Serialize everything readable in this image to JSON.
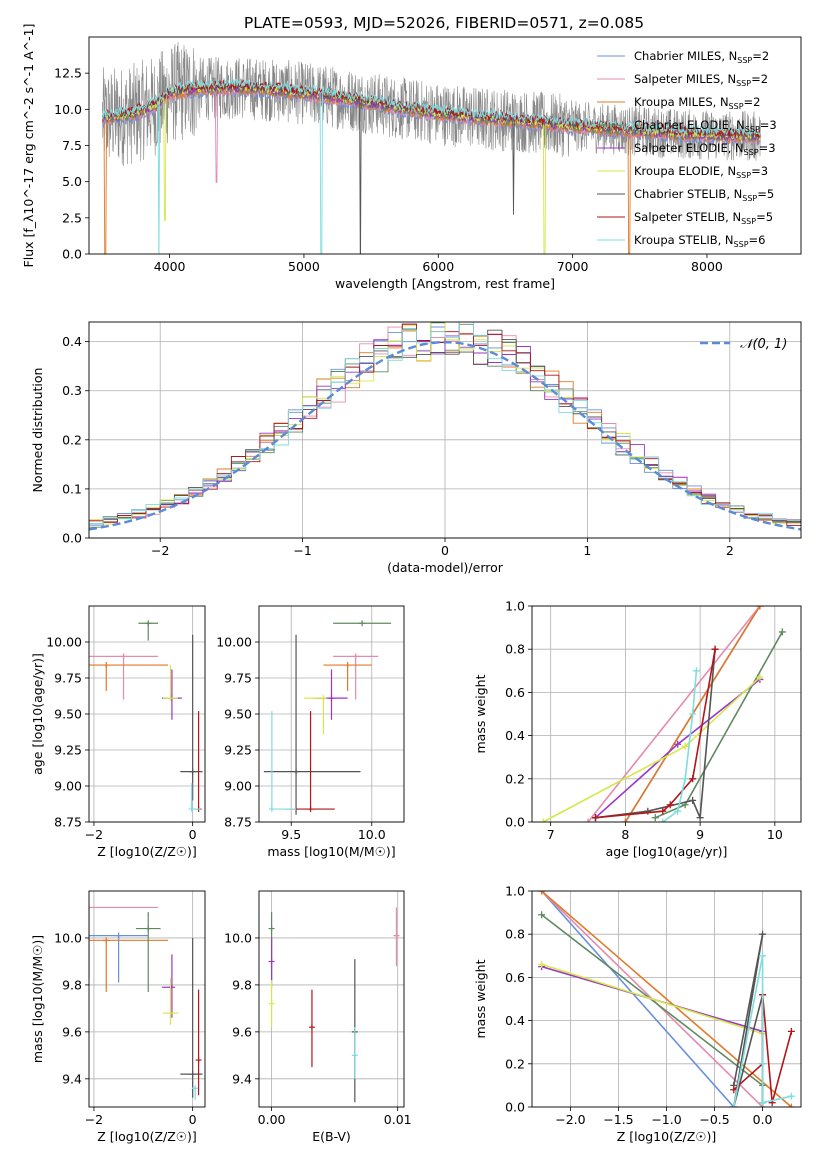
{
  "figure_title": "PLATE=0593, MJD=52026, FIBERID=0571, z=0.085",
  "colors": {
    "chabrier_miles": "#6a8fdd",
    "salpeter_miles": "#e58bb0",
    "kroupa_miles": "#e07a28",
    "chabrier_elodie": "#5f8a60",
    "salpeter_elodie": "#9a36c8",
    "kroupa_elodie": "#d4e84a",
    "chabrier_stelib": "#555555",
    "salpeter_stelib": "#b0161a",
    "kroupa_stelib": "#7fdde0",
    "gaussian": "#5b8bd6",
    "grid": "#b0b0b0"
  },
  "chart_data": [
    {
      "id": "spectrum",
      "type": "line",
      "xlabel": "wavelength [Angstrom, rest frame]",
      "ylabel": "Flux [f_λ10^-17 erg cm^-2 s^-1 A^-1]",
      "xlim": [
        3400,
        8700
      ],
      "ylim": [
        0,
        15
      ],
      "xticks": [
        4000,
        5000,
        6000,
        7000,
        8000
      ],
      "yticks": [
        0.0,
        2.5,
        5.0,
        7.5,
        10.0,
        12.5
      ],
      "legend_position": "top-right",
      "legend": [
        {
          "key": "chabrier_miles",
          "label": "Chabrier MILES, N",
          "sub": "SSP",
          "suffix": "=2"
        },
        {
          "key": "salpeter_miles",
          "label": "Salpeter MILES, N",
          "sub": "SSP",
          "suffix": "=2"
        },
        {
          "key": "kroupa_miles",
          "label": "Kroupa MILES, N",
          "sub": "SSP",
          "suffix": "=2"
        },
        {
          "key": "chabrier_elodie",
          "label": "Chabrier ELODIE, N",
          "sub": "SSP",
          "suffix": "=3"
        },
        {
          "key": "salpeter_elodie",
          "label": "Salpeter ELODIE, N",
          "sub": "SSP",
          "suffix": "=3"
        },
        {
          "key": "kroupa_elodie",
          "label": "Kroupa ELODIE, N",
          "sub": "SSP",
          "suffix": "=3"
        },
        {
          "key": "chabrier_stelib",
          "label": "Chabrier STELIB, N",
          "sub": "SSP",
          "suffix": "=5"
        },
        {
          "key": "salpeter_stelib",
          "label": "Salpeter STELIB, N",
          "sub": "SSP",
          "suffix": "=5"
        },
        {
          "key": "kroupa_stelib",
          "label": "Kroupa STELIB, N",
          "sub": "SSP",
          "suffix": "=6"
        }
      ],
      "continuum": [
        [
          3500,
          9.4
        ],
        [
          3700,
          9.6
        ],
        [
          3900,
          10.3
        ],
        [
          4000,
          11.1
        ],
        [
          4200,
          11.4
        ],
        [
          4500,
          11.5
        ],
        [
          4800,
          11.3
        ],
        [
          5100,
          11.0
        ],
        [
          5400,
          10.6
        ],
        [
          5700,
          10.1
        ],
        [
          6000,
          9.7
        ],
        [
          6300,
          9.4
        ],
        [
          6600,
          9.2
        ],
        [
          6900,
          8.9
        ],
        [
          7200,
          8.7
        ],
        [
          7500,
          8.5
        ],
        [
          7800,
          8.3
        ],
        [
          8100,
          8.2
        ],
        [
          8400,
          8.1
        ]
      ],
      "data_noise_amp": 2.2,
      "absorption_features": [
        {
          "x": 3520,
          "series": "kroupa_miles",
          "depth": 9.0
        },
        {
          "x": 3920,
          "series": "kroupa_stelib",
          "depth": 10.0
        },
        {
          "x": 3965,
          "series": "kroupa_elodie",
          "depth": 6.5
        },
        {
          "x": 4350,
          "series": "salpeter_miles",
          "depth": 4.5
        },
        {
          "x": 5130,
          "series": "kroupa_stelib",
          "depth": 11.0
        },
        {
          "x": 5420,
          "series": "chabrier_stelib",
          "depth": 11.0
        },
        {
          "x": 6560,
          "series": "chabrier_stelib",
          "depth": 4.5
        },
        {
          "x": 6790,
          "series": "kroupa_elodie",
          "depth": 9.0
        },
        {
          "x": 7420,
          "series": "kroupa_miles",
          "depth": 9.0
        }
      ]
    },
    {
      "id": "residuals",
      "type": "bar",
      "xlabel": "(data-model)/error",
      "ylabel": "Normed distribution",
      "xlim": [
        -2.5,
        2.5
      ],
      "ylim": [
        0,
        0.44
      ],
      "xticks": [
        -2,
        -1,
        0,
        1,
        2
      ],
      "yticks": [
        0.0,
        0.1,
        0.2,
        0.3,
        0.4
      ],
      "bin_width": 0.1,
      "legend_position": "top-right",
      "gaussian_label": "𝒩(0, 1)",
      "gaussian": {
        "mean": 0,
        "sigma": 1
      }
    },
    {
      "id": "age_vs_Z",
      "type": "scatter",
      "xlabel": "Z [log10(Z/Z☉)]",
      "ylabel": "age  [log10(age/yr)]",
      "xlim": [
        -2.1,
        0.25
      ],
      "ylim": [
        8.75,
        10.25
      ],
      "xticks": [
        -2,
        0
      ],
      "yticks": [
        8.75,
        9.0,
        9.25,
        9.5,
        9.75,
        10.0
      ],
      "points": [
        {
          "series": "salpeter_miles",
          "x": -1.4,
          "y": 9.9,
          "xerr": [
            0.7,
            0.7
          ],
          "yerr": [
            0.3,
            0.0
          ]
        },
        {
          "series": "kroupa_miles",
          "x": -1.75,
          "y": 9.84,
          "xerr": [
            0.35,
            1.25
          ],
          "yerr": [
            0.18,
            0.0
          ]
        },
        {
          "series": "chabrier_elodie",
          "x": -0.9,
          "y": 10.13,
          "xerr": [
            0.2,
            0.2
          ],
          "yerr": [
            0.12,
            0.0
          ]
        },
        {
          "series": "salpeter_elodie",
          "x": -0.42,
          "y": 9.61,
          "xerr": [
            0.2,
            0.2
          ],
          "yerr": [
            0.15,
            0.2
          ]
        },
        {
          "series": "kroupa_elodie",
          "x": -0.45,
          "y": 9.61,
          "xerr": [
            0.15,
            0.15
          ],
          "yerr": [
            0.0,
            0.23
          ]
        },
        {
          "series": "chabrier_stelib",
          "x": 0.0,
          "y": 9.1,
          "xerr": [
            0.25,
            0.2
          ],
          "yerr": [
            0.2,
            0.95
          ]
        },
        {
          "series": "salpeter_stelib",
          "x": 0.12,
          "y": 8.84,
          "xerr": [
            0.0,
            0.0
          ],
          "yerr": [
            0.0,
            0.68
          ]
        },
        {
          "series": "kroupa_stelib",
          "x": -0.02,
          "y": 8.84,
          "xerr": [
            0.0,
            0.18
          ],
          "yerr": [
            0.0,
            0.18
          ]
        }
      ]
    },
    {
      "id": "age_vs_mass",
      "type": "scatter",
      "xlabel": "mass [log10(M/M☉)]",
      "ylabel": "",
      "xlim": [
        9.3,
        10.2
      ],
      "ylim": [
        8.75,
        10.25
      ],
      "xticks": [
        9.5,
        10.0
      ],
      "yticks": [
        8.75,
        9.0,
        9.25,
        9.5,
        9.75,
        10.0
      ],
      "points": [
        {
          "series": "salpeter_miles",
          "x": 9.9,
          "y": 9.9,
          "xerr": [
            0.14,
            0.14
          ],
          "yerr": [
            0.3,
            0.0
          ]
        },
        {
          "series": "kroupa_miles",
          "x": 9.85,
          "y": 9.84,
          "xerr": [
            0.15,
            0.15
          ],
          "yerr": [
            0.18,
            0.0
          ]
        },
        {
          "series": "chabrier_elodie",
          "x": 9.94,
          "y": 10.13,
          "xerr": [
            0.18,
            0.18
          ],
          "yerr": [
            0.0,
            0.0
          ]
        },
        {
          "series": "salpeter_elodie",
          "x": 9.75,
          "y": 9.61,
          "xerr": [
            0.1,
            0.1
          ],
          "yerr": [
            0.15,
            0.2
          ]
        },
        {
          "series": "kroupa_elodie",
          "x": 9.7,
          "y": 9.61,
          "xerr": [
            0.12,
            0.0
          ],
          "yerr": [
            0.25,
            0.0
          ]
        },
        {
          "series": "chabrier_stelib",
          "x": 9.53,
          "y": 9.1,
          "xerr": [
            0.2,
            0.4
          ],
          "yerr": [
            0.3,
            0.95
          ]
        },
        {
          "series": "salpeter_stelib",
          "x": 9.62,
          "y": 8.84,
          "xerr": [
            0.15,
            0.15
          ],
          "yerr": [
            0.0,
            0.68
          ]
        },
        {
          "series": "kroupa_stelib",
          "x": 9.38,
          "y": 8.84,
          "xerr": [
            0.0,
            0.15
          ],
          "yerr": [
            0.0,
            0.68
          ]
        }
      ]
    },
    {
      "id": "weight_vs_age",
      "type": "line",
      "xlabel": "age  [log10(age/yr)]",
      "ylabel": "mass weight",
      "xlim": [
        6.75,
        10.35
      ],
      "ylim": [
        0,
        1
      ],
      "xticks": [
        7,
        8,
        9,
        10
      ],
      "yticks": [
        0.0,
        0.2,
        0.4,
        0.6,
        0.8,
        1.0
      ],
      "series": [
        {
          "key": "chabrier_miles",
          "x": [
            8.0,
            9.8
          ],
          "y": [
            0.0,
            1.0
          ]
        },
        {
          "key": "salpeter_miles",
          "x": [
            7.5,
            9.8
          ],
          "y": [
            0.0,
            1.0
          ]
        },
        {
          "key": "kroupa_miles",
          "x": [
            8.0,
            9.8
          ],
          "y": [
            0.0,
            1.0
          ]
        },
        {
          "key": "chabrier_elodie",
          "x": [
            8.4,
            8.8,
            10.1
          ],
          "y": [
            0.02,
            0.08,
            0.88
          ]
        },
        {
          "key": "salpeter_elodie",
          "x": [
            7.6,
            8.7,
            9.8
          ],
          "y": [
            0.02,
            0.36,
            0.66
          ]
        },
        {
          "key": "kroupa_elodie",
          "x": [
            6.9,
            8.8,
            9.8
          ],
          "y": [
            0.0,
            0.35,
            0.67
          ]
        },
        {
          "key": "chabrier_stelib",
          "x": [
            7.6,
            8.3,
            8.9,
            9.0,
            9.2
          ],
          "y": [
            0.02,
            0.05,
            0.1,
            0.02,
            0.8
          ]
        },
        {
          "key": "salpeter_stelib",
          "x": [
            7.6,
            8.5,
            8.6,
            8.9,
            9.2
          ],
          "y": [
            0.02,
            0.05,
            0.08,
            0.2,
            0.8
          ]
        },
        {
          "key": "kroupa_stelib",
          "x": [
            8.5,
            8.7,
            8.8,
            8.9,
            8.95
          ],
          "y": [
            0.0,
            0.05,
            0.2,
            0.5,
            0.7
          ]
        }
      ]
    },
    {
      "id": "mass_vs_Z",
      "type": "scatter",
      "xlabel": "Z [log10(Z/Z☉)]",
      "ylabel": "mass [log10(M/M☉)]",
      "xlim": [
        -2.1,
        0.25
      ],
      "ylim": [
        9.28,
        10.2
      ],
      "xticks": [
        -2,
        0
      ],
      "yticks": [
        9.4,
        9.6,
        9.8,
        10.0
      ],
      "points": [
        {
          "series": "salpeter_miles",
          "x": -2.1,
          "y": 10.13,
          "xerr": [
            0.0,
            1.4
          ],
          "yerr": [
            0.3,
            0.0
          ]
        },
        {
          "series": "chabrier_miles",
          "x": -1.5,
          "y": 10.01,
          "xerr": [
            0.6,
            0.6
          ],
          "yerr": [
            0.2,
            0.0
          ]
        },
        {
          "series": "kroupa_miles",
          "x": -1.75,
          "y": 9.99,
          "xerr": [
            0.35,
            1.25
          ],
          "yerr": [
            0.22,
            0.0
          ]
        },
        {
          "series": "chabrier_elodie",
          "x": -0.9,
          "y": 10.04,
          "xerr": [
            0.25,
            0.25
          ],
          "yerr": [
            0.27,
            0.07
          ]
        },
        {
          "series": "salpeter_elodie",
          "x": -0.42,
          "y": 9.79,
          "xerr": [
            0.2,
            0.0
          ],
          "yerr": [
            0.13,
            0.14
          ]
        },
        {
          "series": "kroupa_elodie",
          "x": -0.45,
          "y": 9.68,
          "xerr": [
            0.15,
            0.15
          ],
          "yerr": [
            0.05,
            0.15
          ]
        },
        {
          "series": "chabrier_stelib",
          "x": 0.0,
          "y": 9.42,
          "xerr": [
            0.25,
            0.2
          ],
          "yerr": [
            0.1,
            0.58
          ]
        },
        {
          "series": "salpeter_stelib",
          "x": 0.12,
          "y": 9.48,
          "xerr": [
            0.0,
            0.0
          ],
          "yerr": [
            0.15,
            0.3
          ]
        },
        {
          "series": "kroupa_stelib",
          "x": 0.05,
          "y": 9.36,
          "xerr": [
            0.07,
            0.0
          ],
          "yerr": [
            0.05,
            0.0
          ]
        }
      ]
    },
    {
      "id": "mass_vs_ebv",
      "type": "scatter",
      "xlabel": "E(B-V)",
      "ylabel": "",
      "xlim": [
        -0.001,
        0.0105
      ],
      "ylim": [
        9.28,
        10.2
      ],
      "xticks": [
        0.0,
        0.01
      ],
      "xtick_labels": [
        "0.00",
        "0.01"
      ],
      "yticks": [
        9.4,
        9.6,
        9.8,
        10.0
      ],
      "points": [
        {
          "series": "chabrier_elodie",
          "x": 0.0,
          "y": 10.04,
          "xerr": [
            0,
            0
          ],
          "yerr": [
            0.25,
            0.07
          ]
        },
        {
          "series": "salpeter_elodie",
          "x": 0.0,
          "y": 9.9,
          "xerr": [
            0,
            0
          ],
          "yerr": [
            0.08,
            0.1
          ]
        },
        {
          "series": "kroupa_elodie",
          "x": 0.0,
          "y": 9.72,
          "xerr": [
            0,
            0
          ],
          "yerr": [
            0.1,
            0.1
          ]
        },
        {
          "series": "salpeter_stelib",
          "x": 0.0032,
          "y": 9.62,
          "xerr": [
            0,
            0
          ],
          "yerr": [
            0.17,
            0.16
          ]
        },
        {
          "series": "chabrier_stelib",
          "x": 0.0066,
          "y": 9.6,
          "xerr": [
            0,
            0
          ],
          "yerr": [
            0.3,
            0.31
          ]
        },
        {
          "series": "kroupa_stelib",
          "x": 0.0066,
          "y": 9.5,
          "xerr": [
            0,
            0
          ],
          "yerr": [
            0.1,
            0.12
          ]
        },
        {
          "series": "salpeter_miles",
          "x": 0.0099,
          "y": 10.01,
          "xerr": [
            0,
            0
          ],
          "yerr": [
            0.13,
            0.12
          ]
        }
      ]
    },
    {
      "id": "weight_vs_Z",
      "type": "line",
      "xlabel": "Z [log10(Z/Z☉)]",
      "ylabel": "mass weight",
      "xlim": [
        -2.4,
        0.4
      ],
      "ylim": [
        0,
        1
      ],
      "xticks": [
        -2.0,
        -1.5,
        -1.0,
        -0.5,
        0.0
      ],
      "xtick_labels": [
        "−2.0",
        "−1.5",
        "−1.0",
        "−0.5",
        "0.0"
      ],
      "yticks": [
        0.0,
        0.2,
        0.4,
        0.6,
        0.8,
        1.0
      ],
      "series": [
        {
          "key": "chabrier_miles",
          "x": [
            -2.3,
            -0.3
          ],
          "y": [
            1.0,
            0.0
          ]
        },
        {
          "key": "salpeter_miles",
          "x": [
            -2.3,
            0.0
          ],
          "y": [
            1.0,
            0.0
          ]
        },
        {
          "key": "kroupa_miles",
          "x": [
            -2.3,
            0.3
          ],
          "y": [
            1.0,
            0.0
          ]
        },
        {
          "key": "chabrier_elodie",
          "x": [
            -2.3,
            0.0,
            0.0
          ],
          "y": [
            0.89,
            0.1,
            0.02
          ]
        },
        {
          "key": "salpeter_elodie",
          "x": [
            -2.3,
            0.0
          ],
          "y": [
            0.65,
            0.35
          ]
        },
        {
          "key": "kroupa_elodie",
          "x": [
            -2.3,
            0.0
          ],
          "y": [
            0.66,
            0.34
          ]
        },
        {
          "key": "chabrier_stelib",
          "x": [
            -0.3,
            0.0,
            -0.3,
            0.0,
            0.0
          ],
          "y": [
            0.1,
            0.8,
            0.0,
            0.52,
            0.02
          ]
        },
        {
          "key": "salpeter_stelib",
          "x": [
            -0.3,
            0.0,
            0.0,
            0.1,
            0.3
          ],
          "y": [
            0.08,
            0.2,
            0.52,
            0.02,
            0.35
          ]
        },
        {
          "key": "kroupa_stelib",
          "x": [
            -0.3,
            0.0,
            0.0,
            0.0,
            0.3
          ],
          "y": [
            0.0,
            0.7,
            0.2,
            0.02,
            0.05
          ]
        }
      ]
    }
  ]
}
